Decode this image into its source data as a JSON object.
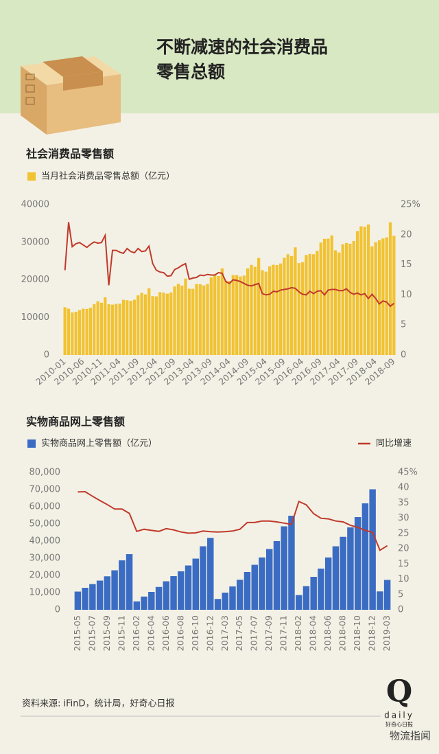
{
  "title": [
    "不断减速的社会消费品",
    "零售总额"
  ],
  "source": "资料来源: iFinD，统计局，好奇心日报",
  "logo": {
    "letter": "Q",
    "word": "daily",
    "sub": "好奇心日报"
  },
  "watermark": "物流指闻",
  "chart_data": [
    {
      "type": "combo",
      "title": "社会消费品零售额",
      "grid": false,
      "categories": [
        "2010-01",
        null,
        null,
        null,
        null,
        "2010-06",
        null,
        null,
        null,
        null,
        "2010-11",
        null,
        null,
        null,
        null,
        "2011-04",
        null,
        null,
        null,
        null,
        "2011-09",
        null,
        null,
        null,
        null,
        "2012-04",
        null,
        null,
        null,
        null,
        "2012-09",
        null,
        null,
        null,
        null,
        "2013-04",
        null,
        null,
        null,
        null,
        "2013-09",
        null,
        null,
        null,
        null,
        "2014-04",
        null,
        null,
        null,
        null,
        "2014-09",
        null,
        null,
        null,
        null,
        "2015-04",
        null,
        null,
        null,
        null,
        "2015-09",
        null,
        null,
        null,
        null,
        "2016-04",
        null,
        null,
        null,
        null,
        "2016-09",
        null,
        null,
        null,
        null,
        "2017-04",
        null,
        null,
        null,
        null,
        "2017-09",
        null,
        null,
        null,
        null,
        "2018-04",
        null,
        null,
        null,
        null,
        "2018-09"
      ],
      "ylim": [
        0,
        40000
      ],
      "yticks": [
        0,
        10000,
        20000,
        30000,
        40000
      ],
      "y2lim": [
        0,
        25
      ],
      "y2ticks": [
        0,
        5,
        10,
        15,
        20,
        {
          "value": 25,
          "label": "25%"
        }
      ],
      "series": [
        {
          "name": "当月社会消费品零售总额（亿元）",
          "type": "bar",
          "color": "#f1c232",
          "values": [
            12718,
            12334,
            11322,
            11510,
            11965,
            12329,
            12252,
            12570,
            13537,
            14285,
            13911,
            15330,
            13500,
            13400,
            13588,
            13649,
            14697,
            14565,
            14408,
            14705,
            15865,
            16546,
            16128,
            17739,
            15650,
            15603,
            16715,
            16584,
            16315,
            16659,
            18227,
            18934,
            18477,
            20334,
            17640,
            17600,
            18886,
            18827,
            18513,
            18886,
            20653,
            21491,
            21012,
            23060,
            19801,
            19701,
            21250,
            21243,
            20893,
            21134,
            23040,
            23968,
            23475,
            25801,
            22560,
            22170,
            23572,
            24016,
            23926,
            24353,
            25872,
            26800,
            26314,
            28635,
            24450,
            24700,
            26600,
            26900,
            26800,
            27700,
            29900,
            30900,
            30960,
            31800,
            27864,
            27278,
            29459,
            29808,
            29610,
            30330,
            32949,
            34241,
            34108,
            34734,
            28900,
            30000,
            30500,
            31000,
            31300,
            35300,
            31700
          ]
        },
        {
          "type": "line",
          "axis": "y2",
          "color": "#c0392b",
          "values": [
            14.1,
            22.1,
            18.0,
            18.5,
            18.7,
            18.3,
            17.9,
            18.4,
            18.8,
            18.6,
            18.7,
            19.9,
            11.6,
            17.4,
            17.4,
            17.1,
            16.9,
            17.7,
            17.2,
            17.0,
            17.7,
            17.2,
            17.3,
            18.1,
            15.2,
            14.1,
            13.8,
            13.7,
            13.1,
            13.2,
            14.2,
            14.5,
            14.9,
            15.2,
            12.6,
            12.8,
            12.9,
            13.3,
            13.2,
            13.4,
            13.3,
            13.3,
            13.7,
            13.6,
            12.2,
            11.9,
            12.5,
            12.4,
            12.2,
            11.9,
            11.6,
            11.5,
            11.7,
            11.9,
            10.2,
            10.0,
            10.1,
            10.6,
            10.5,
            10.8,
            10.9,
            11.0,
            11.2,
            11.1,
            10.5,
            10.1,
            10.0,
            10.6,
            10.2,
            10.6,
            10.7,
            10.0,
            10.8,
            10.9,
            10.9,
            10.7,
            10.7,
            11.0,
            10.4,
            10.1,
            10.3,
            10.0,
            10.2,
            9.4,
            10.1,
            9.4,
            8.5,
            9.0,
            8.8,
            8.1,
            8.6
          ]
        }
      ]
    },
    {
      "type": "combo",
      "title": "实物商品网上零售额",
      "grid": false,
      "categories": [
        "2015-05",
        null,
        "2015-07",
        null,
        "2015-09",
        null,
        "2015-11",
        null,
        "2016-02",
        null,
        "2016-04",
        null,
        "2016-06",
        null,
        "2016-08",
        null,
        "2016-10",
        null,
        "2016-12",
        null,
        "2017-03",
        null,
        "2017-05",
        null,
        "2017-07",
        null,
        "2017-09",
        null,
        "2017-11",
        null,
        "2018-02",
        null,
        "2018-04",
        null,
        "2018-06",
        null,
        "2018-08",
        null,
        "2018-10",
        null,
        "2018-12",
        null,
        "2019-03"
      ],
      "ylim": [
        0,
        80000
      ],
      "yticks": [
        0,
        {
          "value": 10000,
          "label": "10,000"
        },
        {
          "value": 20000,
          "label": "20,000"
        },
        {
          "value": 30000,
          "label": "30,000"
        },
        {
          "value": 40000,
          "label": "40,000"
        },
        {
          "value": 50000,
          "label": "50,000"
        },
        {
          "value": 60000,
          "label": "60,000"
        },
        {
          "value": 70000,
          "label": "70,000"
        },
        {
          "value": 80000,
          "label": "80,000"
        }
      ],
      "y2lim": [
        0,
        45
      ],
      "y2ticks": [
        0,
        5,
        10,
        15,
        20,
        25,
        30,
        35,
        40,
        {
          "value": 45,
          "label": "45%"
        }
      ],
      "series": [
        {
          "name": "实物商品网上零售额（亿元）",
          "type": "bar",
          "color": "#3b6cc4",
          "values": [
            10600,
            12800,
            15000,
            17000,
            19500,
            23000,
            28800,
            32400,
            4900,
            7700,
            10400,
            13300,
            16600,
            19600,
            22400,
            25800,
            29800,
            37000,
            41900,
            6300,
            10000,
            13600,
            17500,
            22000,
            26200,
            30500,
            35400,
            40000,
            48600,
            54800,
            8600,
            13800,
            19200,
            24000,
            30500,
            37000,
            42500,
            48000,
            54000,
            62000,
            70200,
            10700,
            17400
          ]
        },
        {
          "name": "同比增速",
          "type": "line",
          "axis": "y2",
          "color": "#c0392b",
          "values": [
            38.6,
            38.7,
            37.2,
            35.8,
            34.5,
            33.0,
            33.0,
            31.6,
            25.7,
            26.4,
            26.0,
            25.7,
            26.6,
            26.2,
            25.5,
            25.1,
            25.2,
            25.8,
            25.6,
            25.5,
            25.6,
            25.8,
            26.4,
            28.6,
            28.6,
            29.1,
            29.1,
            28.8,
            28.4,
            28.0,
            35.5,
            34.4,
            31.5,
            30.0,
            29.8,
            29.1,
            28.8,
            27.7,
            27.0,
            26.0,
            25.4,
            19.5,
            21.0
          ]
        }
      ]
    }
  ]
}
